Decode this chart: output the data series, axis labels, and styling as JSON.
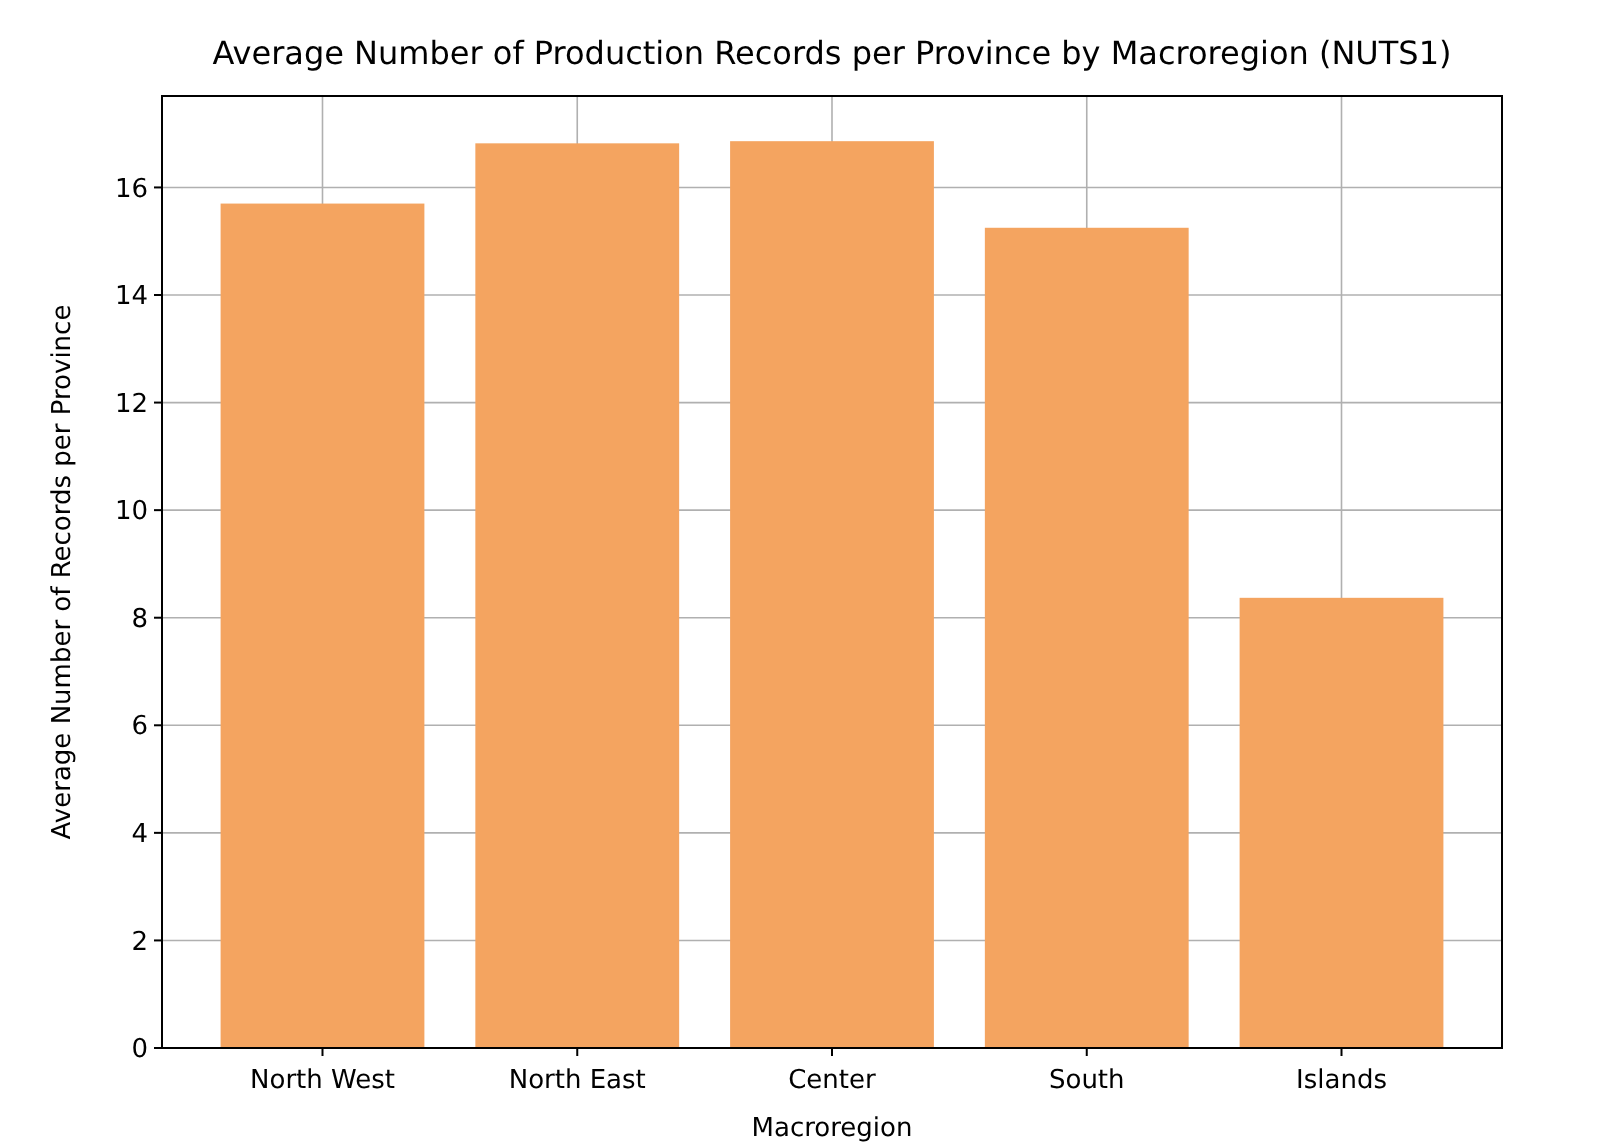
{
  "chart_data": {
    "type": "bar",
    "title": "Average Number of Production Records per Province by Macroregion (NUTS1)",
    "xlabel": "Macroregion",
    "ylabel": "Average Number of Records per Province",
    "categories": [
      "North West",
      "North East",
      "Center",
      "South",
      "Islands"
    ],
    "values": [
      15.7,
      16.82,
      16.86,
      15.25,
      8.37
    ],
    "color": "#f4a460",
    "ylim": [
      0,
      17.7
    ],
    "yticks": [
      0,
      2,
      4,
      6,
      8,
      10,
      12,
      14,
      16
    ],
    "grid": true
  }
}
